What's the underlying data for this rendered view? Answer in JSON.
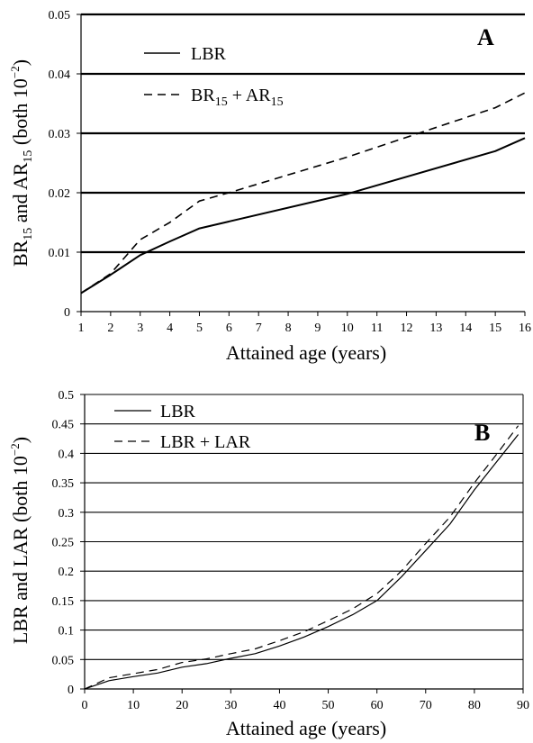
{
  "chart_data": [
    {
      "type": "line",
      "panel": "A",
      "xlabel": "Attained age (years)",
      "ylabel_parts": {
        "a": "BR",
        "a_sub": "15",
        "mid": " and AR",
        "b_sub": "15",
        "tail": " (both 10",
        "exp": "−2",
        "close": ")"
      },
      "xlim": [
        1,
        16
      ],
      "ylim": [
        0,
        0.05
      ],
      "xticks": [
        "1",
        "2",
        "3",
        "4",
        "5",
        "6",
        "7",
        "8",
        "9",
        "10",
        "11",
        "12",
        "13",
        "14",
        "15",
        "16"
      ],
      "yticks": [
        "0",
        "0.01",
        "0.02",
        "0.03",
        "0.04",
        "0.05"
      ],
      "grid": true,
      "legend_placement": "top-left",
      "series": [
        {
          "name": "LBR",
          "style": "solid",
          "x": [
            1,
            2,
            3,
            4,
            5,
            10,
            15,
            16
          ],
          "y": [
            0.0031,
            0.0062,
            0.0095,
            0.0118,
            0.014,
            0.0198,
            0.027,
            0.0292
          ]
        },
        {
          "name_parts": {
            "a": "BR",
            "a_sub": "15",
            "mid": " + AR",
            "b_sub": "15"
          },
          "style": "dashed",
          "x": [
            1,
            2,
            3,
            4,
            5,
            6,
            10,
            15,
            16
          ],
          "y": [
            0.0031,
            0.0064,
            0.0121,
            0.015,
            0.0186,
            0.02,
            0.026,
            0.0343,
            0.0368
          ]
        }
      ]
    },
    {
      "type": "line",
      "panel": "B",
      "xlabel": "Attained age (years)",
      "ylabel_parts": {
        "main": "LBR and LAR (both 10",
        "exp": "−2",
        "close": ")"
      },
      "xlim": [
        0,
        90
      ],
      "ylim": [
        0,
        0.5
      ],
      "xticks": [
        "0",
        "10",
        "20",
        "30",
        "40",
        "50",
        "60",
        "70",
        "80",
        "90"
      ],
      "yticks": [
        "0",
        "0.05",
        "0.1",
        "0.15",
        "0.2",
        "0.25",
        "0.3",
        "0.35",
        "0.4",
        "0.45",
        "0.5"
      ],
      "grid": true,
      "legend_placement": "top-left",
      "series": [
        {
          "name": "LBR",
          "style": "solid",
          "x": [
            0,
            5,
            10,
            15,
            20,
            25,
            30,
            35,
            40,
            45,
            50,
            55,
            60,
            65,
            70,
            75,
            80,
            85,
            89
          ],
          "y": [
            0,
            0.014,
            0.021,
            0.027,
            0.037,
            0.043,
            0.052,
            0.06,
            0.073,
            0.088,
            0.106,
            0.126,
            0.15,
            0.19,
            0.235,
            0.28,
            0.338,
            0.39,
            0.432
          ]
        },
        {
          "name": "LBR + LAR",
          "style": "dashed",
          "x": [
            0,
            5,
            10,
            15,
            20,
            25,
            30,
            35,
            40,
            45,
            50,
            55,
            60,
            65,
            70,
            75,
            80,
            85,
            89
          ],
          "y": [
            0,
            0.019,
            0.026,
            0.033,
            0.045,
            0.051,
            0.06,
            0.068,
            0.082,
            0.097,
            0.116,
            0.136,
            0.162,
            0.2,
            0.247,
            0.292,
            0.35,
            0.403,
            0.447
          ]
        }
      ]
    }
  ]
}
